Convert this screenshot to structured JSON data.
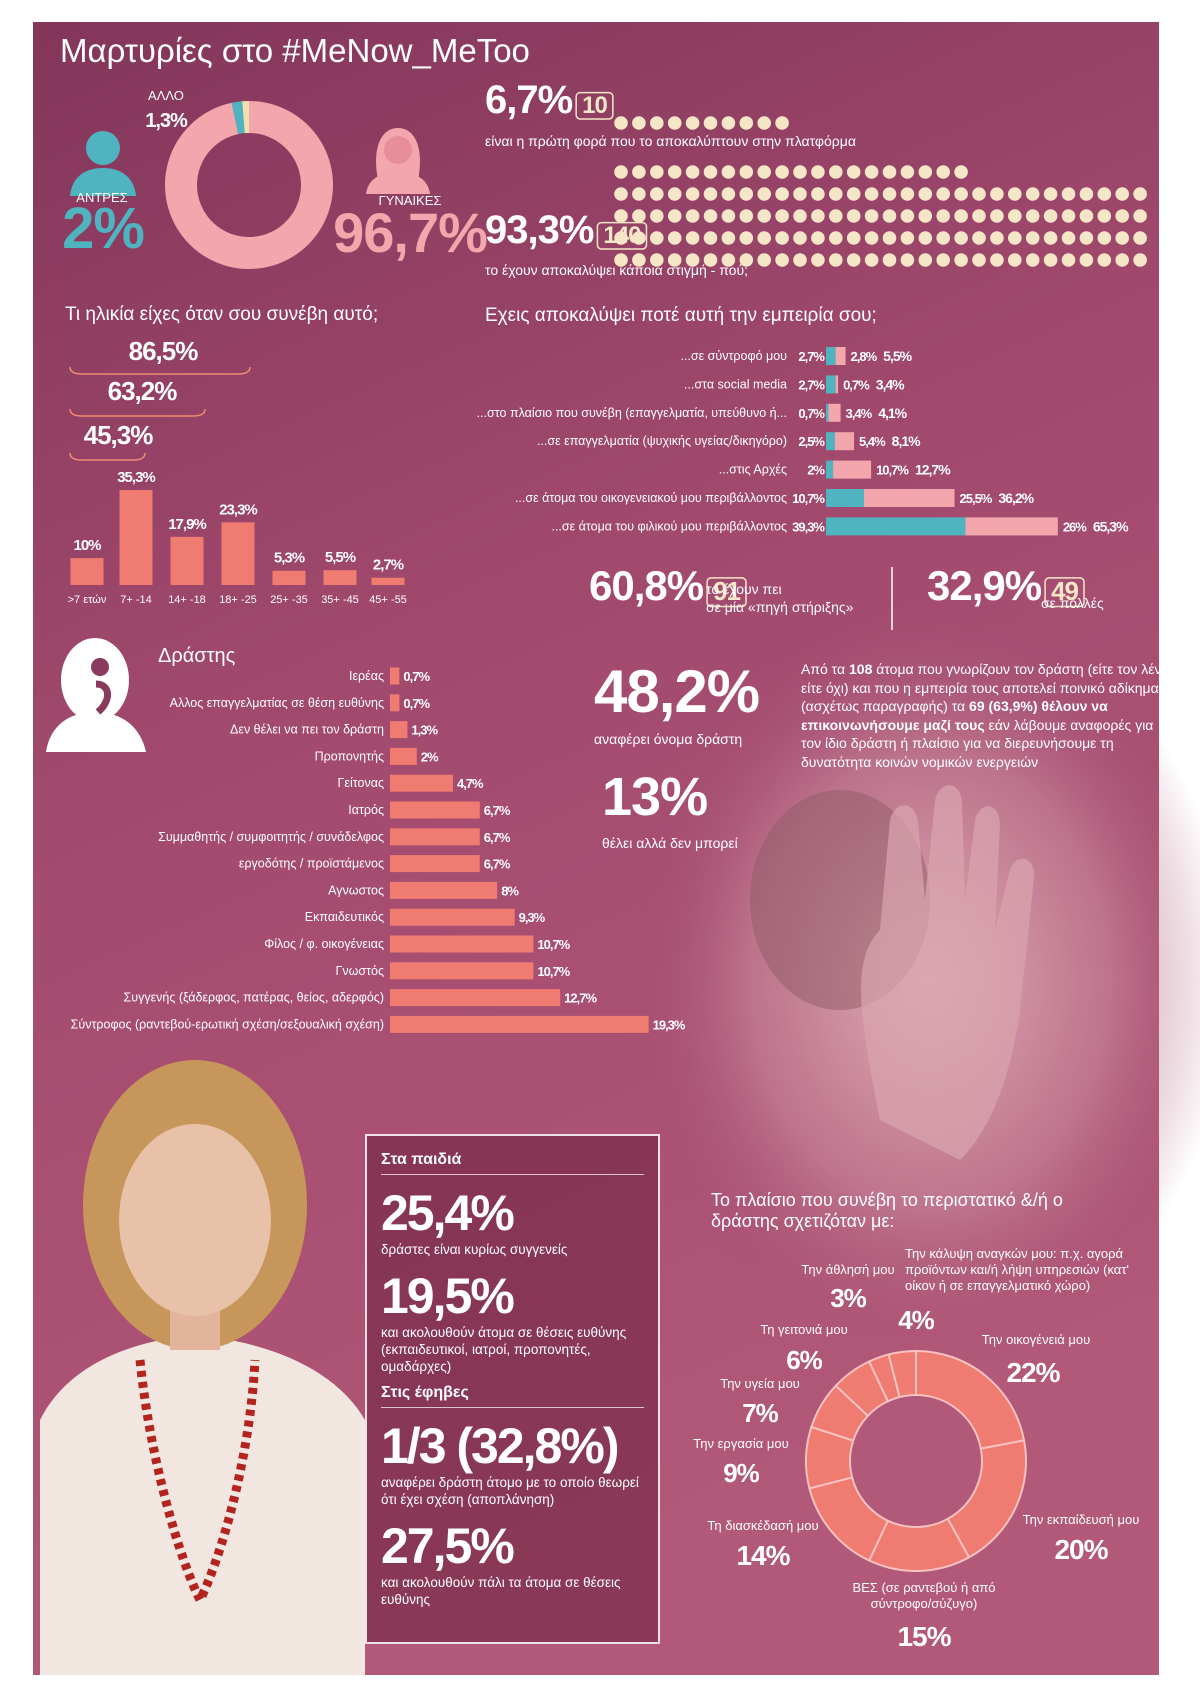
{
  "title": "Μαρτυρίες στο #MeNow_MeToo",
  "chart_data": [
    {
      "type": "donut",
      "categories": [
        "ΓΥΝΑΙΚΕΣ",
        "ΑΝΤΡΕΣ",
        "ΑΛΛΟ"
      ],
      "values": [
        96.7,
        2,
        1.3
      ],
      "value_labels": [
        "96,7%",
        "2%",
        "1,3%"
      ],
      "colors": [
        "#f4a6ad",
        "#4fb3c0",
        "#f3e0b0"
      ]
    },
    {
      "type": "pictogram",
      "categories": [
        "είναι η πρώτη φορά που το αποκαλύπτουν στην πλατφόρμα",
        "το έχουν αποκαλύψει κάποια στιγμή - πού;"
      ],
      "values": [
        6.7,
        93.3
      ],
      "value_labels": [
        "6,7%",
        "93,3%"
      ],
      "counts": [
        10,
        140
      ],
      "color": "#f5e6c8"
    },
    {
      "type": "bar",
      "title": "Τι ηλικία είχες όταν σου συνέβη αυτό;",
      "categories": [
        ">7 ετών",
        "7+ -14",
        "14+ -18",
        "18+ -25",
        "25+ -35",
        "35+ -45",
        "45+ -55"
      ],
      "values": [
        10,
        35.3,
        17.9,
        23.3,
        5.3,
        5.5,
        2.7
      ],
      "value_labels": [
        "10%",
        "35,3%",
        "17,9%",
        "23,3%",
        "5,3%",
        "5,5%",
        "2,7%"
      ],
      "color": "#f07b70",
      "annotations": [
        {
          "value": 86.5,
          "label": "86,5%"
        },
        {
          "value": 63.2,
          "label": "63,2%"
        },
        {
          "value": 45.3,
          "label": "45,3%"
        }
      ]
    },
    {
      "type": "stacked_hbar",
      "title": "Εχεις αποκαλύψει ποτέ αυτή την εμπειρία σου;",
      "categories": [
        "...σε σύντροφό μου",
        "...στα social media",
        "...στο πλαίσιο που συνέβη (επαγγελματία, υπεύθυνο ή...",
        "...σε επαγγελματία (ψυχικής υγείας/δικηγόρο)",
        "...στις Αρχές",
        "...σε άτομα του οικογενειακού μου περιβάλλοντος",
        "...σε άτομα του φιλικού μου περιβάλλοντος"
      ],
      "series": [
        {
          "color": "#4fb3c0",
          "values": [
            2.7,
            2.7,
            0.7,
            2.5,
            2,
            10.7,
            39.3
          ],
          "value_labels": [
            "2,7%",
            "2,7%",
            "0,7%",
            "2,5%",
            "2%",
            "10,7%",
            "39,3%"
          ]
        },
        {
          "color": "#f4a6ad",
          "values": [
            2.8,
            0.7,
            3.4,
            5.4,
            10.7,
            25.5,
            26
          ],
          "value_labels": [
            "2,8%",
            "0,7%",
            "3,4%",
            "5,4%",
            "10,7%",
            "25,5%",
            "26%"
          ]
        }
      ],
      "total_labels": [
        "5,5%",
        "3,4%",
        "4,1%",
        "8,1%",
        "12,7%",
        "36,2%",
        "65,3%"
      ]
    },
    {
      "type": "hbar",
      "title": "Δράστης",
      "categories": [
        "Ιερέας",
        "Αλλος επαγγελματίας σε θέση ευθύνης",
        "Δεν θέλει να πει τον δράστη",
        "Προπονητής",
        "Γείτονας",
        "Ιατρός",
        "Συμμαθητής / συμφοιτητής / συνάδελφος",
        "εργοδότης / προϊστάμενος",
        "Αγνωστος",
        "Εκπαιδευτικός",
        "Φίλος / φ. οικογένειας",
        "Γνωστός",
        "Συγγενής (ξάδερφος, πατέρας, θείος, αδερφός)",
        "Σύντροφος (ραντεβού-ερωτική σχέση/σεξουαλική σχέση)"
      ],
      "values": [
        0.7,
        0.7,
        1.3,
        2,
        4.7,
        6.7,
        6.7,
        6.7,
        8,
        9.3,
        10.7,
        10.7,
        12.7,
        19.3
      ],
      "value_labels": [
        "0,7%",
        "0,7%",
        "1,3%",
        "2%",
        "4,7%",
        "6,7%",
        "6,7%",
        "6,7%",
        "8%",
        "9,3%",
        "10,7%",
        "10,7%",
        "12,7%",
        "19,3%"
      ],
      "color": "#f07b70"
    },
    {
      "type": "donut",
      "title": "Το πλαίσιο που συνέβη το περιστατικό &/ή ο δράστης σχετιζόταν με:",
      "categories": [
        "Την οικογένειά μου",
        "Την εκπαίδευσή μου",
        "ΒΕΣ (σε ραντεβού ή από σύντροφο/σύζυγο)",
        "Τη διασκέδασή μου",
        "Την εργασία μου",
        "Την υγεία μου",
        "Τη γειτονιά μου",
        "Την άθλησή μου",
        "Την κάλυψη αναγκών μου: π.χ. αγορά προϊόντων και/ή λήψη υπηρεσιών (κατ' οίκον ή σε επαγγελματικό χώρο)"
      ],
      "values": [
        22,
        20,
        15,
        14,
        9,
        7,
        6,
        3,
        4
      ],
      "value_labels": [
        "22%",
        "20%",
        "15%",
        "14%",
        "9%",
        "7%",
        "6%",
        "3%",
        "4%"
      ],
      "color": "#f07b70"
    }
  ],
  "support": [
    {
      "label": "60,8%",
      "count": 91,
      "text": [
        "το έχουν πει",
        "σε μία «πηγή στήριξης»"
      ]
    },
    {
      "label": "32,9%",
      "count": 49,
      "text": [
        "σε πολλές"
      ]
    }
  ],
  "perpetrator_stats": [
    {
      "label": "48,2%",
      "text": "αναφέρει όνομα δράστη"
    },
    {
      "label": "13%",
      "text": "θέλει αλλά δεν μπορεί"
    }
  ],
  "note": [
    "Από τα ",
    "108",
    " άτομα που γνωρίζουν τον δράστη (είτε τον λένε είτε όχι) και που η εμπειρία τους αποτελεί ποινικό αδίκημα (ασχέτως παραγραφής)  τα ",
    "69 (63,9%) θέλουν να επικοινωνήσουμε μαζί τους",
    " εάν λάβουμε αναφορές για τον ίδιο δράστη ή πλαίσιο για να διερευνήσουμε τη δυνατότητα κοινών νομικών ενεργειών"
  ],
  "box": {
    "sections": [
      {
        "heading": "Στα παιδιά",
        "items": [
          {
            "figure": "25,4%",
            "text": "δράστες είναι κυρίως συγγενείς"
          },
          {
            "figure": "19,5%",
            "text": "και ακολουθούν άτομα σε θέσεις ευθύνης (εκπαιδευτικοί, ιατροί, προπονητές, ομαδάρχες)"
          }
        ]
      },
      {
        "heading": "Στις έφηβες",
        "items": [
          {
            "figure": "1/3 (32,8%)",
            "text": "αναφέρει δράστη άτομο με το οποίο θεωρεί ότι έχει σχέση (αποπλάνηση)"
          },
          {
            "figure": "27,5%",
            "text": "και ακολουθούν πάλι τα άτομα σε θέσεις ευθύνης"
          }
        ]
      }
    ]
  }
}
